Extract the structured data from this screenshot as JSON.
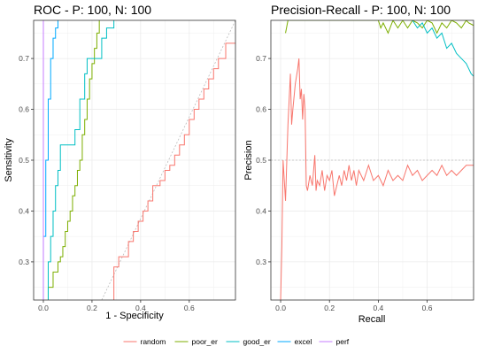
{
  "chart_data": [
    {
      "type": "line",
      "title": "ROC - P: 100, N: 100",
      "xlabel": "1 - Specificity",
      "ylabel": "Sensitivity",
      "xlim": [
        -0.04,
        0.79
      ],
      "ylim": [
        0.225,
        0.775
      ],
      "xticks": [
        0.0,
        0.2,
        0.4,
        0.6
      ],
      "xtick_labels": [
        "0.0",
        "0.2",
        "0.4",
        "0.6"
      ],
      "yticks": [
        0.3,
        0.4,
        0.5,
        0.6,
        0.7
      ],
      "ytick_labels": [
        "0.3",
        "0.4",
        "0.5",
        "0.6",
        "0.7"
      ],
      "grid": true,
      "reference_line": {
        "type": "diagonal",
        "points": [
          [
            0.24,
            0.225
          ],
          [
            0.79,
            0.775
          ]
        ],
        "color": "#bbbbbb",
        "dashed": true
      },
      "series": [
        {
          "name": "random",
          "color": "#F8766D",
          "points": [
            [
              0.29,
              0.225
            ],
            [
              0.29,
              0.29
            ],
            [
              0.31,
              0.29
            ],
            [
              0.31,
              0.31
            ],
            [
              0.35,
              0.31
            ],
            [
              0.35,
              0.34
            ],
            [
              0.37,
              0.34
            ],
            [
              0.37,
              0.36
            ],
            [
              0.39,
              0.36
            ],
            [
              0.39,
              0.38
            ],
            [
              0.41,
              0.38
            ],
            [
              0.41,
              0.4
            ],
            [
              0.43,
              0.4
            ],
            [
              0.43,
              0.42
            ],
            [
              0.45,
              0.42
            ],
            [
              0.45,
              0.45
            ],
            [
              0.48,
              0.45
            ],
            [
              0.48,
              0.46
            ],
            [
              0.5,
              0.46
            ],
            [
              0.5,
              0.48
            ],
            [
              0.52,
              0.48
            ],
            [
              0.52,
              0.49
            ],
            [
              0.54,
              0.49
            ],
            [
              0.54,
              0.51
            ],
            [
              0.56,
              0.51
            ],
            [
              0.56,
              0.53
            ],
            [
              0.58,
              0.53
            ],
            [
              0.58,
              0.55
            ],
            [
              0.6,
              0.55
            ],
            [
              0.6,
              0.58
            ],
            [
              0.62,
              0.58
            ],
            [
              0.62,
              0.6
            ],
            [
              0.64,
              0.6
            ],
            [
              0.64,
              0.62
            ],
            [
              0.66,
              0.62
            ],
            [
              0.66,
              0.64
            ],
            [
              0.68,
              0.64
            ],
            [
              0.68,
              0.66
            ],
            [
              0.7,
              0.66
            ],
            [
              0.7,
              0.68
            ],
            [
              0.72,
              0.68
            ],
            [
              0.72,
              0.7
            ],
            [
              0.75,
              0.7
            ],
            [
              0.75,
              0.73
            ],
            [
              0.79,
              0.73
            ]
          ]
        },
        {
          "name": "poor_er",
          "color": "#7CAE00",
          "points": [
            [
              0.02,
              0.225
            ],
            [
              0.02,
              0.25
            ],
            [
              0.04,
              0.25
            ],
            [
              0.04,
              0.28
            ],
            [
              0.06,
              0.28
            ],
            [
              0.06,
              0.3
            ],
            [
              0.07,
              0.3
            ],
            [
              0.07,
              0.31
            ],
            [
              0.08,
              0.31
            ],
            [
              0.08,
              0.33
            ],
            [
              0.09,
              0.33
            ],
            [
              0.09,
              0.36
            ],
            [
              0.1,
              0.36
            ],
            [
              0.1,
              0.38
            ],
            [
              0.11,
              0.38
            ],
            [
              0.11,
              0.4
            ],
            [
              0.12,
              0.4
            ],
            [
              0.12,
              0.43
            ],
            [
              0.13,
              0.43
            ],
            [
              0.13,
              0.45
            ],
            [
              0.14,
              0.45
            ],
            [
              0.14,
              0.48
            ],
            [
              0.15,
              0.48
            ],
            [
              0.15,
              0.5
            ],
            [
              0.16,
              0.5
            ],
            [
              0.16,
              0.55
            ],
            [
              0.17,
              0.55
            ],
            [
              0.17,
              0.58
            ],
            [
              0.18,
              0.58
            ],
            [
              0.18,
              0.62
            ],
            [
              0.19,
              0.62
            ],
            [
              0.19,
              0.66
            ],
            [
              0.2,
              0.66
            ],
            [
              0.2,
              0.69
            ],
            [
              0.21,
              0.69
            ],
            [
              0.21,
              0.72
            ],
            [
              0.22,
              0.72
            ],
            [
              0.22,
              0.75
            ],
            [
              0.23,
              0.75
            ],
            [
              0.23,
              0.775
            ]
          ]
        },
        {
          "name": "good_er",
          "color": "#00BFC4",
          "points": [
            [
              0.02,
              0.225
            ],
            [
              0.02,
              0.3
            ],
            [
              0.03,
              0.3
            ],
            [
              0.03,
              0.35
            ],
            [
              0.04,
              0.35
            ],
            [
              0.04,
              0.4
            ],
            [
              0.05,
              0.4
            ],
            [
              0.05,
              0.45
            ],
            [
              0.06,
              0.45
            ],
            [
              0.06,
              0.48
            ],
            [
              0.07,
              0.48
            ],
            [
              0.07,
              0.53
            ],
            [
              0.13,
              0.53
            ],
            [
              0.13,
              0.56
            ],
            [
              0.15,
              0.56
            ],
            [
              0.15,
              0.62
            ],
            [
              0.17,
              0.62
            ],
            [
              0.17,
              0.67
            ],
            [
              0.18,
              0.67
            ],
            [
              0.18,
              0.7
            ],
            [
              0.24,
              0.7
            ],
            [
              0.24,
              0.74
            ],
            [
              0.26,
              0.74
            ],
            [
              0.26,
              0.76
            ],
            [
              0.29,
              0.76
            ],
            [
              0.29,
              0.775
            ]
          ]
        },
        {
          "name": "excel",
          "color": "#00A9FF",
          "points": [
            [
              0.0,
              0.225
            ],
            [
              0.0,
              0.35
            ],
            [
              0.01,
              0.35
            ],
            [
              0.01,
              0.5
            ],
            [
              0.02,
              0.5
            ],
            [
              0.02,
              0.62
            ],
            [
              0.03,
              0.62
            ],
            [
              0.03,
              0.7
            ],
            [
              0.04,
              0.7
            ],
            [
              0.04,
              0.74
            ],
            [
              0.05,
              0.74
            ],
            [
              0.05,
              0.76
            ],
            [
              0.06,
              0.76
            ],
            [
              0.06,
              0.775
            ]
          ]
        },
        {
          "name": "perf",
          "color": "#C77CFF",
          "points": [
            [
              0.0,
              0.225
            ],
            [
              0.0,
              0.775
            ]
          ]
        }
      ]
    },
    {
      "type": "line",
      "title": "Precision-Recall - P: 100, N: 100",
      "xlabel": "Recall",
      "ylabel": "Precision",
      "xlim": [
        -0.04,
        0.79
      ],
      "ylim": [
        0.225,
        0.775
      ],
      "xticks": [
        0.0,
        0.2,
        0.4,
        0.6
      ],
      "xtick_labels": [
        "0.0",
        "0.2",
        "0.4",
        "0.6"
      ],
      "yticks": [
        0.3,
        0.4,
        0.5,
        0.6,
        0.7
      ],
      "ytick_labels": [
        "0.3",
        "0.4",
        "0.5",
        "0.6",
        "0.7"
      ],
      "grid": true,
      "reference_line": {
        "type": "horizontal",
        "y": 0.5,
        "color": "#bbbbbb",
        "dashed": true
      },
      "series": [
        {
          "name": "random",
          "color": "#F8766D",
          "points": [
            [
              0.0,
              0.225
            ],
            [
              0.005,
              0.33
            ],
            [
              0.01,
              0.5
            ],
            [
              0.02,
              0.42
            ],
            [
              0.03,
              0.57
            ],
            [
              0.04,
              0.67
            ],
            [
              0.045,
              0.57
            ],
            [
              0.05,
              0.6
            ],
            [
              0.06,
              0.65
            ],
            [
              0.07,
              0.68
            ],
            [
              0.075,
              0.7
            ],
            [
              0.08,
              0.62
            ],
            [
              0.085,
              0.64
            ],
            [
              0.09,
              0.58
            ],
            [
              0.095,
              0.63
            ],
            [
              0.1,
              0.6
            ],
            [
              0.105,
              0.45
            ],
            [
              0.11,
              0.44
            ],
            [
              0.12,
              0.47
            ],
            [
              0.13,
              0.45
            ],
            [
              0.14,
              0.51
            ],
            [
              0.145,
              0.44
            ],
            [
              0.15,
              0.46
            ],
            [
              0.16,
              0.45
            ],
            [
              0.17,
              0.48
            ],
            [
              0.18,
              0.44
            ],
            [
              0.19,
              0.47
            ],
            [
              0.2,
              0.46
            ],
            [
              0.21,
              0.48
            ],
            [
              0.22,
              0.43
            ],
            [
              0.23,
              0.45
            ],
            [
              0.24,
              0.47
            ],
            [
              0.25,
              0.45
            ],
            [
              0.26,
              0.48
            ],
            [
              0.27,
              0.46
            ],
            [
              0.28,
              0.49
            ],
            [
              0.29,
              0.46
            ],
            [
              0.3,
              0.48
            ],
            [
              0.31,
              0.45
            ],
            [
              0.32,
              0.48
            ],
            [
              0.34,
              0.46
            ],
            [
              0.36,
              0.49
            ],
            [
              0.38,
              0.46
            ],
            [
              0.4,
              0.47
            ],
            [
              0.42,
              0.45
            ],
            [
              0.44,
              0.48
            ],
            [
              0.46,
              0.46
            ],
            [
              0.48,
              0.47
            ],
            [
              0.5,
              0.46
            ],
            [
              0.52,
              0.49
            ],
            [
              0.54,
              0.47
            ],
            [
              0.56,
              0.48
            ],
            [
              0.58,
              0.46
            ],
            [
              0.6,
              0.47
            ],
            [
              0.62,
              0.48
            ],
            [
              0.64,
              0.47
            ],
            [
              0.66,
              0.49
            ],
            [
              0.68,
              0.47
            ],
            [
              0.7,
              0.48
            ],
            [
              0.72,
              0.47
            ],
            [
              0.74,
              0.48
            ],
            [
              0.76,
              0.49
            ],
            [
              0.79,
              0.49
            ]
          ]
        },
        {
          "name": "poor_er",
          "color": "#7CAE00",
          "points": [
            [
              0.02,
              0.75
            ],
            [
              0.03,
              0.775
            ],
            [
              0.4,
              0.775
            ],
            [
              0.41,
              0.76
            ],
            [
              0.42,
              0.77
            ],
            [
              0.44,
              0.75
            ],
            [
              0.46,
              0.775
            ],
            [
              0.48,
              0.76
            ],
            [
              0.5,
              0.775
            ],
            [
              0.52,
              0.76
            ],
            [
              0.54,
              0.775
            ],
            [
              0.56,
              0.77
            ],
            [
              0.58,
              0.76
            ],
            [
              0.6,
              0.775
            ],
            [
              0.62,
              0.77
            ],
            [
              0.64,
              0.75
            ],
            [
              0.66,
              0.77
            ],
            [
              0.68,
              0.76
            ],
            [
              0.7,
              0.775
            ],
            [
              0.72,
              0.77
            ],
            [
              0.74,
              0.76
            ],
            [
              0.76,
              0.775
            ],
            [
              0.77,
              0.77
            ],
            [
              0.79,
              0.765
            ]
          ]
        },
        {
          "name": "good_er",
          "color": "#00BFC4",
          "points": [
            [
              0.54,
              0.775
            ],
            [
              0.56,
              0.76
            ],
            [
              0.58,
              0.77
            ],
            [
              0.6,
              0.75
            ],
            [
              0.62,
              0.76
            ],
            [
              0.64,
              0.74
            ],
            [
              0.66,
              0.75
            ],
            [
              0.68,
              0.72
            ],
            [
              0.7,
              0.73
            ],
            [
              0.72,
              0.71
            ],
            [
              0.74,
              0.7
            ],
            [
              0.75,
              0.695
            ],
            [
              0.76,
              0.69
            ],
            [
              0.77,
              0.68
            ],
            [
              0.78,
              0.67
            ],
            [
              0.79,
              0.665
            ]
          ]
        }
      ]
    }
  ],
  "legend": {
    "position": "bottom",
    "items": [
      {
        "label": "random",
        "color": "#F8766D"
      },
      {
        "label": "poor_er",
        "color": "#7CAE00"
      },
      {
        "label": "good_er",
        "color": "#00BFC4"
      },
      {
        "label": "excel",
        "color": "#00A9FF"
      },
      {
        "label": "perf",
        "color": "#C77CFF"
      }
    ]
  }
}
